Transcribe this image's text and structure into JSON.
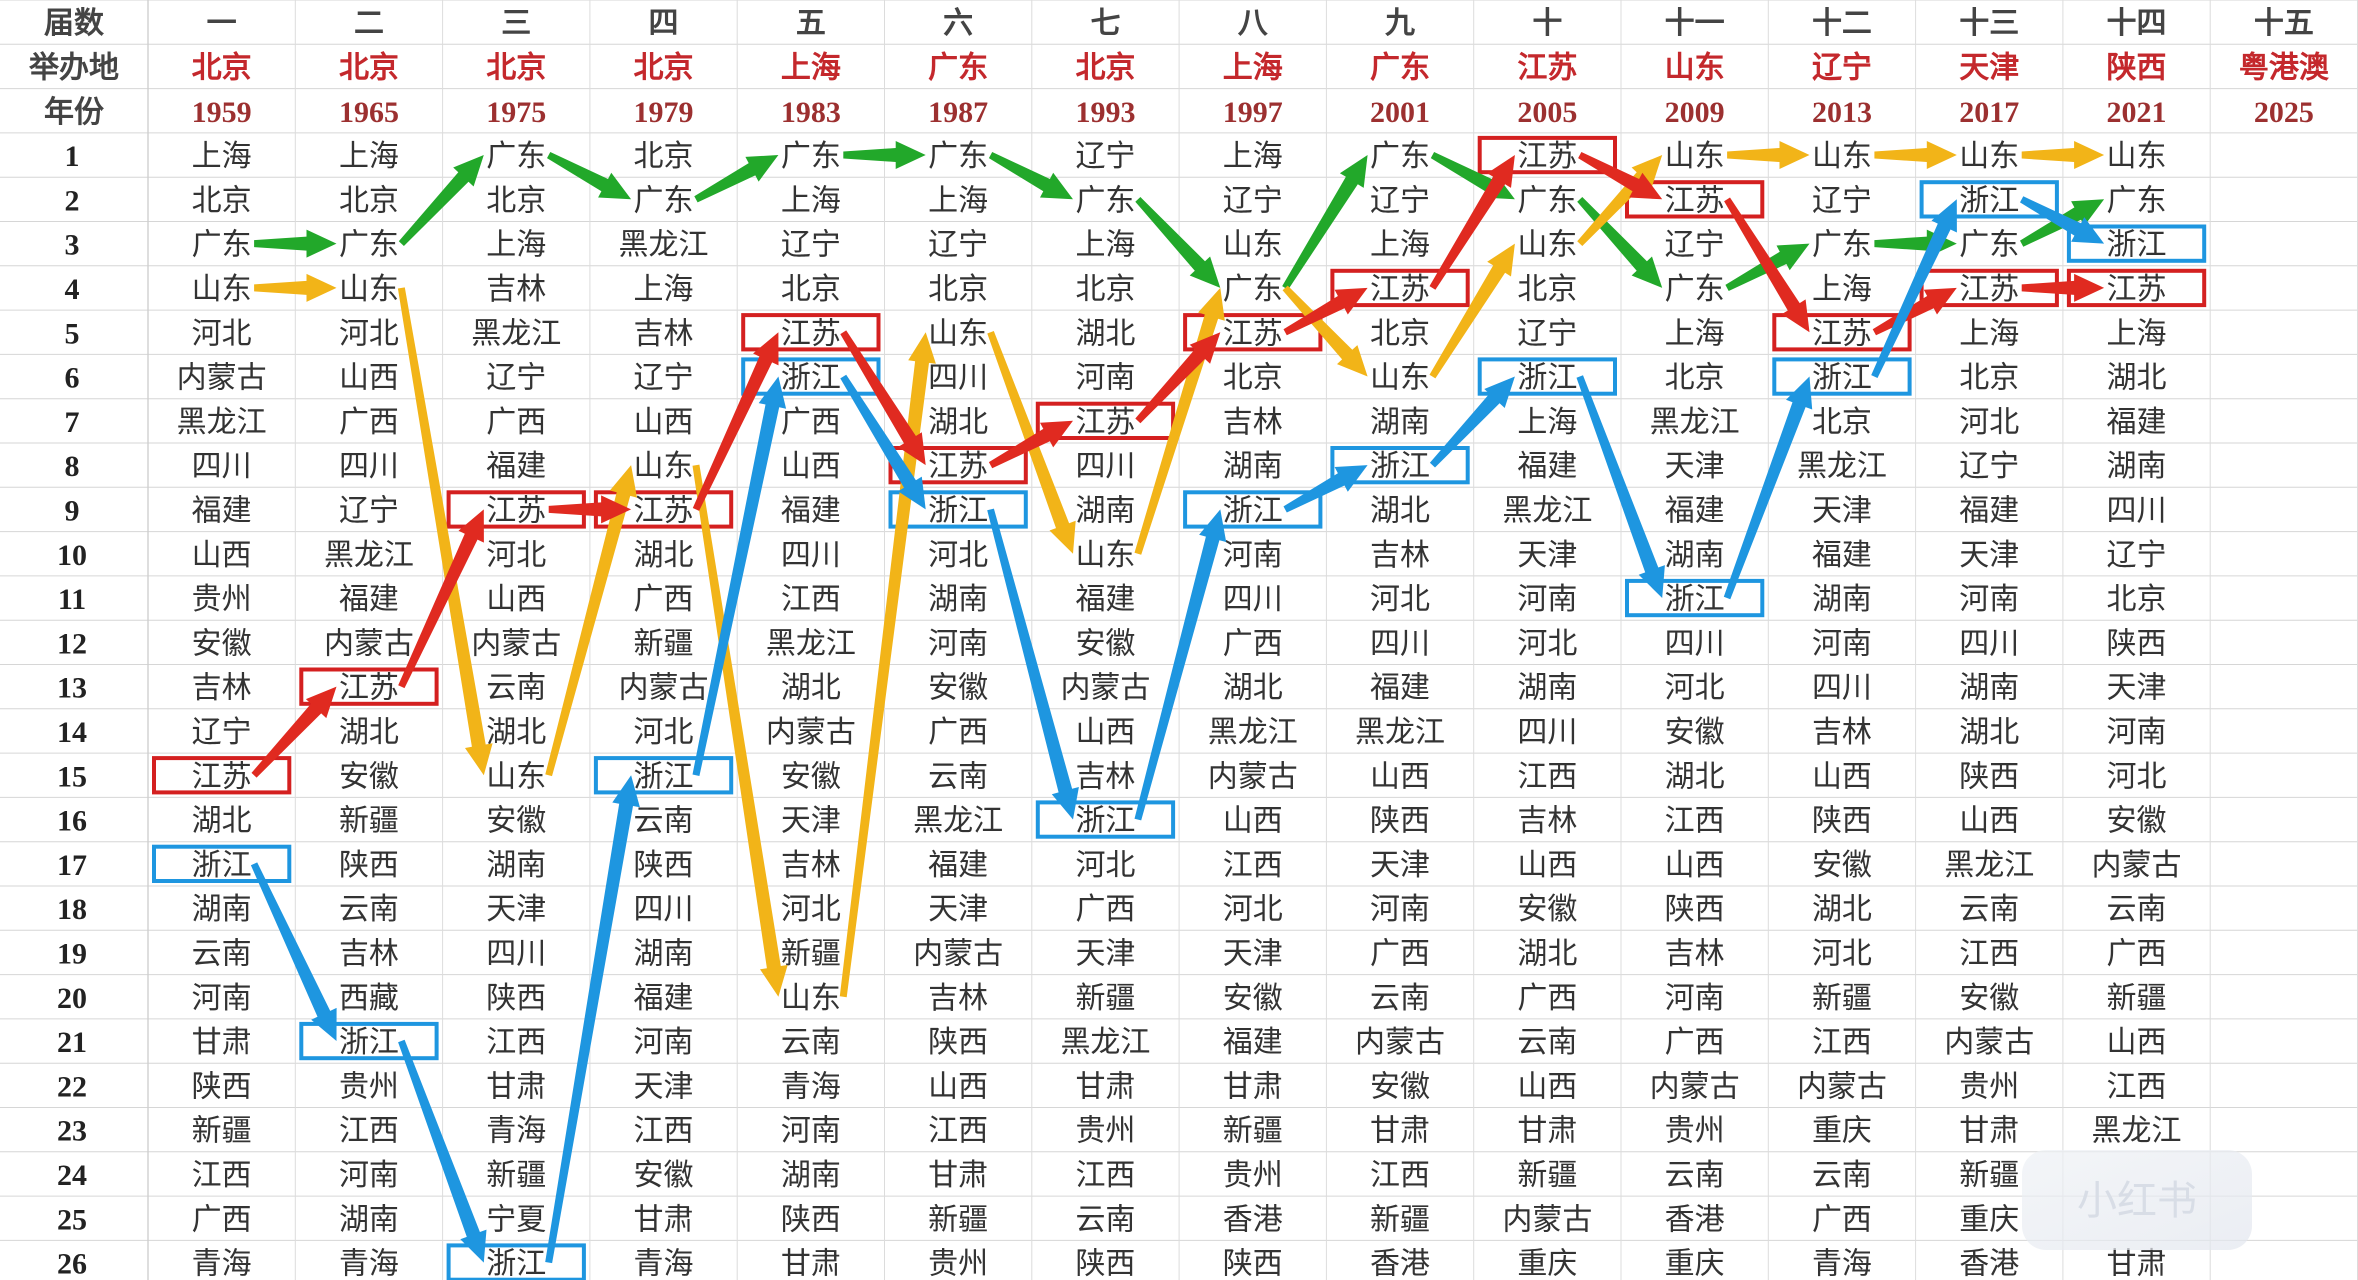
{
  "chart_data": {
    "type": "table",
    "header_labels": {
      "session": "届数",
      "host": "举办地",
      "year": "年份"
    },
    "sessions": [
      "一",
      "二",
      "三",
      "四",
      "五",
      "六",
      "七",
      "八",
      "九",
      "十",
      "十一",
      "十二",
      "十三",
      "十四",
      "十五"
    ],
    "hosts": [
      "北京",
      "北京",
      "北京",
      "北京",
      "上海",
      "广东",
      "北京",
      "上海",
      "广东",
      "江苏",
      "山东",
      "辽宁",
      "天津",
      "陕西",
      "粤港澳"
    ],
    "years": [
      "1959",
      "1965",
      "1975",
      "1979",
      "1983",
      "1987",
      "1993",
      "1997",
      "2001",
      "2005",
      "2009",
      "2013",
      "2017",
      "2021",
      "2025"
    ],
    "ranks": [
      1,
      2,
      3,
      4,
      5,
      6,
      7,
      8,
      9,
      10,
      11,
      12,
      13,
      14,
      15,
      16,
      17,
      18,
      19,
      20,
      21,
      22,
      23,
      24,
      25,
      26
    ],
    "columns": [
      [
        "上海",
        "北京",
        "广东",
        "山东",
        "河北",
        "内蒙古",
        "黑龙江",
        "四川",
        "福建",
        "山西",
        "贵州",
        "安徽",
        "吉林",
        "辽宁",
        "江苏",
        "湖北",
        "浙江",
        "湖南",
        "云南",
        "河南",
        "甘肃",
        "陕西",
        "新疆",
        "江西",
        "广西",
        "青海"
      ],
      [
        "上海",
        "北京",
        "广东",
        "山东",
        "河北",
        "山西",
        "广西",
        "四川",
        "辽宁",
        "黑龙江",
        "福建",
        "内蒙古",
        "江苏",
        "湖北",
        "安徽",
        "新疆",
        "陕西",
        "云南",
        "吉林",
        "西藏",
        "浙江",
        "贵州",
        "江西",
        "河南",
        "湖南",
        "青海"
      ],
      [
        "广东",
        "北京",
        "上海",
        "吉林",
        "黑龙江",
        "辽宁",
        "广西",
        "福建",
        "江苏",
        "河北",
        "山西",
        "内蒙古",
        "云南",
        "湖北",
        "山东",
        "安徽",
        "湖南",
        "天津",
        "四川",
        "陕西",
        "江西",
        "甘肃",
        "青海",
        "新疆",
        "宁夏",
        "浙江"
      ],
      [
        "北京",
        "广东",
        "黑龙江",
        "上海",
        "吉林",
        "辽宁",
        "山西",
        "山东",
        "江苏",
        "湖北",
        "广西",
        "新疆",
        "内蒙古",
        "河北",
        "浙江",
        "云南",
        "陕西",
        "四川",
        "湖南",
        "福建",
        "河南",
        "天津",
        "江西",
        "安徽",
        "甘肃",
        "青海"
      ],
      [
        "广东",
        "上海",
        "辽宁",
        "北京",
        "江苏",
        "浙江",
        "广西",
        "山西",
        "福建",
        "四川",
        "江西",
        "黑龙江",
        "湖北",
        "内蒙古",
        "安徽",
        "天津",
        "吉林",
        "河北",
        "新疆",
        "山东",
        "云南",
        "青海",
        "河南",
        "湖南",
        "陕西",
        "甘肃"
      ],
      [
        "广东",
        "上海",
        "辽宁",
        "北京",
        "山东",
        "四川",
        "湖北",
        "江苏",
        "浙江",
        "河北",
        "湖南",
        "河南",
        "安徽",
        "广西",
        "云南",
        "黑龙江",
        "福建",
        "天津",
        "内蒙古",
        "吉林",
        "陕西",
        "山西",
        "江西",
        "甘肃",
        "新疆",
        "贵州"
      ],
      [
        "辽宁",
        "广东",
        "上海",
        "北京",
        "湖北",
        "河南",
        "江苏",
        "四川",
        "湖南",
        "山东",
        "福建",
        "安徽",
        "内蒙古",
        "山西",
        "吉林",
        "浙江",
        "河北",
        "广西",
        "天津",
        "新疆",
        "黑龙江",
        "甘肃",
        "贵州",
        "江西",
        "云南",
        "陕西"
      ],
      [
        "上海",
        "辽宁",
        "山东",
        "广东",
        "江苏",
        "北京",
        "吉林",
        "湖南",
        "浙江",
        "河南",
        "四川",
        "广西",
        "湖北",
        "黑龙江",
        "内蒙古",
        "山西",
        "江西",
        "河北",
        "天津",
        "安徽",
        "福建",
        "甘肃",
        "新疆",
        "贵州",
        "香港",
        "陕西"
      ],
      [
        "广东",
        "辽宁",
        "上海",
        "江苏",
        "北京",
        "山东",
        "湖南",
        "浙江",
        "湖北",
        "吉林",
        "河北",
        "四川",
        "福建",
        "黑龙江",
        "山西",
        "陕西",
        "天津",
        "河南",
        "广西",
        "云南",
        "内蒙古",
        "安徽",
        "甘肃",
        "江西",
        "新疆",
        "香港"
      ],
      [
        "江苏",
        "广东",
        "山东",
        "北京",
        "辽宁",
        "浙江",
        "上海",
        "福建",
        "黑龙江",
        "天津",
        "河南",
        "河北",
        "湖南",
        "四川",
        "江西",
        "吉林",
        "山西",
        "安徽",
        "湖北",
        "广西",
        "云南",
        "山西",
        "甘肃",
        "新疆",
        "内蒙古",
        "重庆"
      ],
      [
        "山东",
        "江苏",
        "辽宁",
        "广东",
        "上海",
        "北京",
        "黑龙江",
        "天津",
        "福建",
        "湖南",
        "浙江",
        "四川",
        "河北",
        "安徽",
        "湖北",
        "江西",
        "山西",
        "陕西",
        "吉林",
        "河南",
        "广西",
        "内蒙古",
        "贵州",
        "云南",
        "香港",
        "重庆"
      ],
      [
        "山东",
        "辽宁",
        "广东",
        "上海",
        "江苏",
        "浙江",
        "北京",
        "黑龙江",
        "天津",
        "福建",
        "湖南",
        "河南",
        "四川",
        "吉林",
        "山西",
        "陕西",
        "安徽",
        "湖北",
        "河北",
        "新疆",
        "江西",
        "内蒙古",
        "重庆",
        "云南",
        "广西",
        "青海"
      ],
      [
        "山东",
        "浙江",
        "广东",
        "江苏",
        "上海",
        "北京",
        "河北",
        "辽宁",
        "福建",
        "天津",
        "河南",
        "四川",
        "湖南",
        "湖北",
        "陕西",
        "山西",
        "黑龙江",
        "云南",
        "江西",
        "安徽",
        "内蒙古",
        "贵州",
        "甘肃",
        "新疆",
        "重庆",
        "香港"
      ],
      [
        "山东",
        "广东",
        "浙江",
        "江苏",
        "上海",
        "湖北",
        "福建",
        "湖南",
        "四川",
        "辽宁",
        "北京",
        "陕西",
        "天津",
        "河南",
        "河北",
        "安徽",
        "内蒙古",
        "云南",
        "广西",
        "新疆",
        "山西",
        "江西",
        "黑龙江",
        "",
        "",
        "甘肃"
      ],
      []
    ],
    "highlighted_provinces": [
      {
        "name": "江苏",
        "color": "#d42020"
      },
      {
        "name": "浙江",
        "color": "#1e96e0"
      }
    ],
    "arrow_colors": {
      "green": "#22a82a",
      "yellow": "#f2b418",
      "red": "#e02a20",
      "blue": "#1e96e0"
    },
    "header_colors": {
      "host": "#c4282c",
      "year": "#9c3030"
    },
    "watermark": "小红书"
  }
}
